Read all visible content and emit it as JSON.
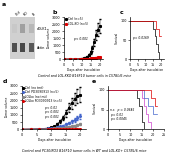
{
  "annotations": [
    "Control and LOL-KKO B16F10 tumor cells in C57BL/6 mice",
    "Control and PC30/KO3 B16F10 tumor cells in WT and LOL-KO+ C57BL/6 mice"
  ],
  "chart_data": [
    {
      "type": "blot",
      "title": "a",
      "categories": [
        "Ctrl",
        "KO",
        "B"
      ],
      "color": "#d0d0d0",
      "series": [
        {
          "name": "cDLK1",
          "colors": [
            "#c8c8c8",
            "#a0a0a0",
            "#b8b8b8"
          ]
        },
        {
          "name": "Actin",
          "colors": [
            "#505050",
            "#484848",
            "#585858"
          ]
        }
      ]
    },
    {
      "type": "line",
      "title": "b",
      "xlabel": "Days after inoculation",
      "ylabel": "Tumor volume",
      "xlim": [
        0,
        22
      ],
      "xticks": [
        0,
        5,
        10,
        15,
        20
      ],
      "ylim": [
        0,
        3000
      ],
      "yticks": [
        0,
        500,
        1000,
        1500,
        2000,
        2500,
        3000
      ],
      "legend": "upper left",
      "annotations": [
        "p < 0.001"
      ],
      "series": [
        {
          "name": "Ctrl (n=5)",
          "color": "#000000",
          "marker": "square",
          "x": [
            0,
            3,
            6,
            9,
            10,
            11,
            12,
            13,
            14,
            15,
            16,
            17,
            18,
            19,
            20
          ],
          "values": [
            20,
            25,
            30,
            40,
            55,
            75,
            110,
            180,
            300,
            500,
            800,
            1200,
            1700,
            2100,
            2400
          ],
          "errors": [
            5,
            6,
            7,
            9,
            12,
            18,
            25,
            40,
            70,
            120,
            180,
            250,
            350,
            450,
            500
          ]
        },
        {
          "name": "LDL-KO (n=5)",
          "color": "#dd0000",
          "marker": "square",
          "x": [
            0,
            3,
            6,
            9,
            10,
            11,
            12,
            13,
            14,
            15,
            16,
            17,
            18,
            19,
            20
          ],
          "values": [
            20,
            22,
            24,
            26,
            28,
            30,
            35,
            40,
            50,
            60,
            75,
            90,
            110,
            130,
            150
          ],
          "errors": [
            4,
            5,
            5,
            6,
            7,
            7,
            8,
            9,
            11,
            13,
            16,
            19,
            23,
            27,
            32
          ]
        }
      ]
    },
    {
      "type": "step",
      "title": "c",
      "xlabel": "Days after inoculation",
      "ylabel": "Survival",
      "xlim": [
        0,
        22
      ],
      "xticks": [
        0,
        5,
        10,
        15,
        20
      ],
      "ylim": [
        0,
        110
      ],
      "yticks": [
        0,
        50,
        100
      ],
      "annotations": [
        "p = 0.0169"
      ],
      "series": [
        {
          "color": "#000000",
          "x": [
            0,
            10,
            13,
            14,
            15,
            16,
            17,
            18,
            19,
            20
          ],
          "values": [
            100,
            100,
            100,
            100,
            80,
            60,
            40,
            20,
            0,
            0
          ]
        },
        {
          "color": "#dd0000",
          "x": [
            0,
            10,
            13,
            14,
            15,
            16,
            17,
            18,
            19,
            20
          ],
          "values": [
            100,
            100,
            100,
            100,
            100,
            100,
            80,
            80,
            60,
            60
          ]
        }
      ]
    },
    {
      "type": "line",
      "title": "d",
      "xlabel": "Days after inoculation",
      "ylabel": "Tumor volume",
      "xlim": [
        0,
        22
      ],
      "xticks": [
        0,
        5,
        10,
        15,
        20
      ],
      "ylim": [
        0,
        3000
      ],
      "yticks": [
        0,
        500,
        1000,
        1500,
        2000,
        2500,
        3000
      ],
      "legend": "upper left",
      "annotations": [
        "p < 0.01",
        "p < 0.001",
        "p < 0.001"
      ],
      "series": [
        {
          "name": "Ctrl (no tmt)",
          "color": "#000000",
          "marker": "square",
          "x": [
            0,
            3,
            6,
            9,
            10,
            11,
            12,
            13,
            14,
            15,
            16,
            17,
            18,
            19,
            20
          ],
          "values": [
            20,
            30,
            50,
            100,
            150,
            220,
            350,
            550,
            800,
            1100,
            1500,
            1800,
            2100,
            2300,
            2400
          ],
          "errors": [
            5,
            8,
            12,
            25,
            35,
            50,
            80,
            120,
            160,
            220,
            300,
            380,
            430,
            480,
            500
          ]
        },
        {
          "name": "Ctrl PD3090913 (n=5)",
          "color": "#4466cc",
          "marker": "circle",
          "x": [
            0,
            3,
            6,
            9,
            10,
            11,
            12,
            13,
            14,
            15,
            16,
            17,
            18,
            19,
            20
          ],
          "values": [
            20,
            28,
            40,
            70,
            90,
            120,
            160,
            210,
            270,
            350,
            440,
            550,
            660,
            780,
            900
          ],
          "errors": [
            4,
            7,
            10,
            18,
            22,
            28,
            36,
            46,
            56,
            70,
            85,
            100,
            120,
            140,
            165
          ]
        },
        {
          "name": "LOLko (no tmt)",
          "color": "#888888",
          "marker": "square",
          "x": [
            0,
            3,
            6,
            9,
            10,
            11,
            12,
            13,
            14,
            15,
            16,
            17,
            18,
            19,
            20
          ],
          "values": [
            20,
            25,
            32,
            45,
            55,
            70,
            88,
            110,
            135,
            165,
            195,
            230,
            270,
            310,
            360
          ],
          "errors": [
            4,
            5,
            6,
            8,
            10,
            13,
            16,
            20,
            24,
            29,
            34,
            40,
            47,
            55,
            63
          ]
        },
        {
          "name": "LOLko PD3090913 (n=5)",
          "color": "#dd0000",
          "marker": "circle",
          "x": [
            0,
            3,
            6,
            9,
            10,
            11,
            12,
            13,
            14,
            15,
            16,
            17,
            18,
            19,
            20
          ],
          "values": [
            20,
            22,
            24,
            26,
            28,
            30,
            32,
            35,
            38,
            42,
            45,
            48,
            52,
            55,
            58
          ],
          "errors": [
            3,
            4,
            4,
            4,
            5,
            5,
            5,
            6,
            6,
            7,
            7,
            8,
            8,
            8,
            9
          ]
        }
      ]
    },
    {
      "type": "step",
      "title": "e",
      "xlabel": "Days after inoculation",
      "ylabel": "Survival",
      "xlim": [
        0,
        25
      ],
      "xticks": [
        0,
        5,
        10,
        15,
        20,
        25
      ],
      "ylim": [
        0,
        110
      ],
      "yticks": [
        0,
        50,
        100
      ],
      "annotations": [
        "n.s.  p = 0.0645",
        "p = 0.01",
        "p = 0.0045"
      ],
      "series": [
        {
          "color": "#000000",
          "x": [
            0,
            10,
            12,
            13,
            14,
            15,
            16,
            17,
            18,
            19,
            20,
            21,
            22
          ],
          "values": [
            100,
            100,
            100,
            80,
            60,
            20,
            0,
            0,
            0,
            0,
            0,
            0,
            0
          ]
        },
        {
          "color": "#cc44cc",
          "x": [
            0,
            10,
            12,
            13,
            14,
            15,
            16,
            17,
            18,
            19,
            20,
            21,
            22
          ],
          "values": [
            100,
            100,
            100,
            100,
            100,
            80,
            60,
            40,
            20,
            0,
            0,
            0,
            0
          ]
        },
        {
          "color": "#4466cc",
          "x": [
            0,
            10,
            12,
            13,
            14,
            15,
            16,
            17,
            18,
            19,
            20,
            21,
            22
          ],
          "values": [
            100,
            100,
            100,
            100,
            100,
            100,
            80,
            80,
            60,
            60,
            40,
            40,
            40
          ]
        },
        {
          "color": "#dd0000",
          "x": [
            0,
            10,
            12,
            13,
            14,
            15,
            16,
            17,
            18,
            19,
            20,
            21,
            22
          ],
          "values": [
            100,
            100,
            100,
            100,
            100,
            100,
            100,
            100,
            100,
            80,
            80,
            60,
            60
          ]
        }
      ]
    }
  ]
}
